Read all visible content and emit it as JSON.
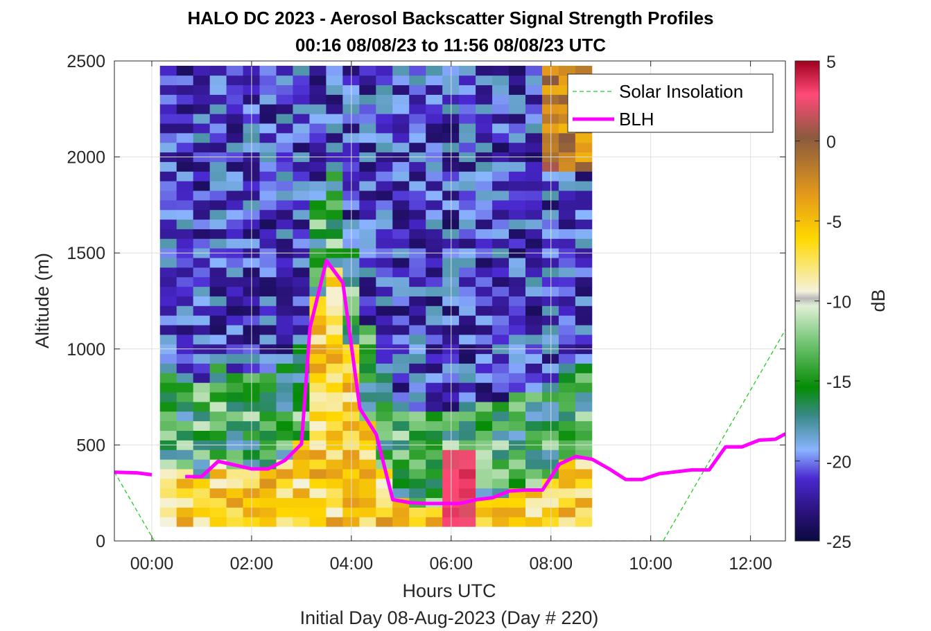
{
  "chart_data": {
    "type": "heatmap",
    "title": "HALO DC 2023 - Aerosol Backscatter Signal Strength Profiles",
    "subtitle": "00:16 08/08/23 to 11:56 08/08/23  UTC",
    "xlabel": "Hours UTC",
    "ylabel": "Altitude (m)",
    "footer": "Initial Day 08-Aug-2023 (Day # 220)",
    "xlim": [
      -0.75,
      12.7
    ],
    "ylim": [
      0,
      2500
    ],
    "x_ticks": [
      0,
      2,
      4,
      6,
      8,
      10,
      12
    ],
    "x_tick_labels": [
      "00:00",
      "02:00",
      "04:00",
      "06:00",
      "08:00",
      "10:00",
      "12:00"
    ],
    "y_ticks": [
      0,
      500,
      1000,
      1500,
      2000,
      2500
    ],
    "y_tick_labels": [
      "0",
      "500",
      "1000",
      "1500",
      "2000",
      "2500"
    ],
    "grid": true,
    "legend_position": "top-right",
    "colorbar": {
      "label": "dB",
      "range": [
        -25,
        5
      ],
      "ticks": [
        5,
        0,
        -5,
        -10,
        -15,
        -20,
        -25
      ],
      "tick_labels": [
        "5",
        "0",
        "-5",
        "-10",
        "-15",
        "-20",
        "-25"
      ]
    },
    "heatmap": {
      "x_start": 0.33,
      "x_step": 0.333,
      "y_start": 100,
      "y_step": 50,
      "profile_count": 26,
      "level_count": 48,
      "note_units": "dB"
    },
    "series": [
      {
        "name": "Solar Insolation",
        "style": "dashed",
        "color": "#22cc22",
        "x": [
          -0.75,
          0.05,
          10.25,
          12.7
        ],
        "y": [
          360,
          0,
          0,
          1100
        ]
      },
      {
        "name": "BLH",
        "style": "solid",
        "color": "#ff00ff",
        "x": [
          -0.75,
          -0.3,
          0.0,
          0.33,
          0.67,
          1.0,
          1.33,
          1.67,
          2.0,
          2.33,
          2.67,
          3.0,
          3.17,
          3.5,
          3.83,
          4.17,
          4.5,
          4.83,
          5.17,
          5.5,
          5.83,
          6.17,
          6.5,
          6.83,
          7.17,
          7.5,
          7.83,
          8.17,
          8.5,
          8.83,
          9.17,
          9.5,
          9.83,
          10.17,
          10.5,
          10.83,
          11.17,
          11.5,
          11.83,
          12.17,
          12.5,
          12.7
        ],
        "y": [
          358,
          355,
          345,
          null,
          335,
          335,
          415,
          395,
          375,
          375,
          420,
          505,
          1110,
          1460,
          1345,
          690,
          555,
          215,
          200,
          195,
          195,
          195,
          215,
          225,
          260,
          265,
          265,
          400,
          440,
          425,
          375,
          320,
          320,
          350,
          360,
          370,
          370,
          490,
          490,
          525,
          530,
          558
        ]
      }
    ]
  }
}
